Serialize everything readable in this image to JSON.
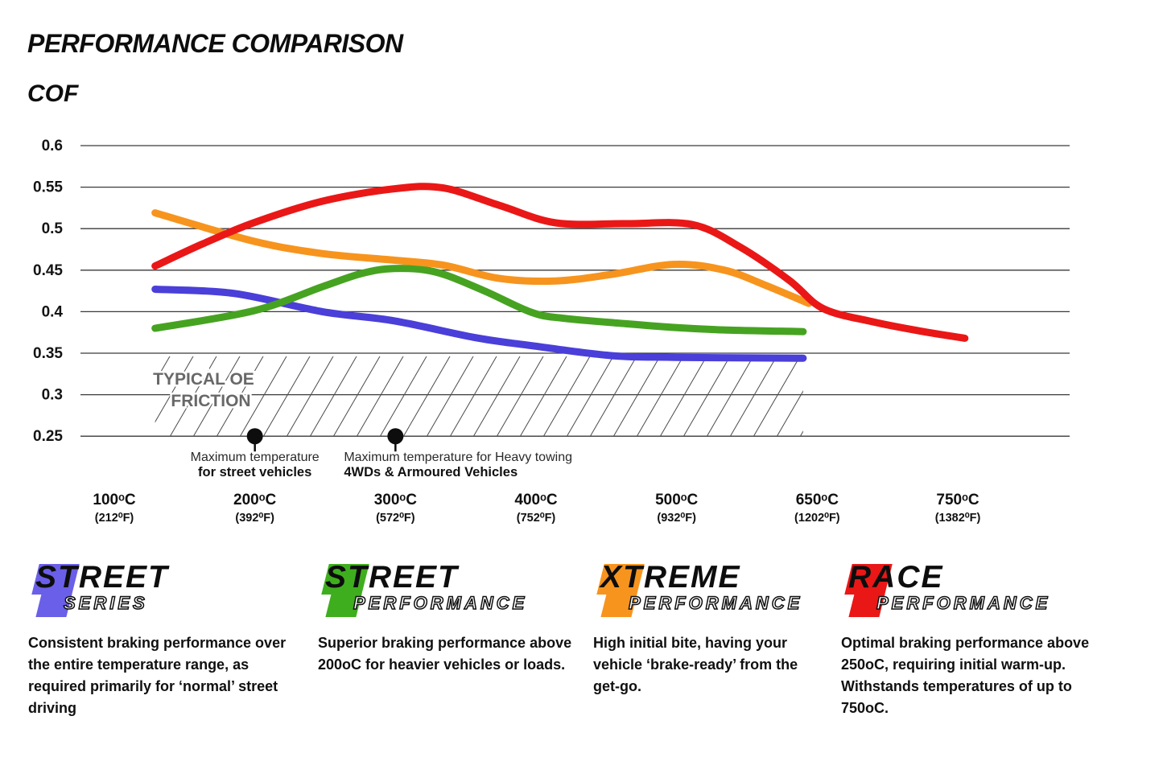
{
  "header": {
    "title": "PERFORMANCE COMPARISON",
    "y_axis_title": "COF"
  },
  "chart_data": {
    "type": "line",
    "title": "PERFORMANCE COMPARISON",
    "ylabel": "COF",
    "ylim": [
      0.25,
      0.6
    ],
    "grid": "horizontal",
    "legend_position": "none",
    "yticks": [
      "0.6",
      "0.55",
      "0.5",
      "0.45",
      "0.4",
      "0.35",
      "0.3",
      "0.25"
    ],
    "xticks": [
      {
        "c": "100ᵒC",
        "f": "(212⁰F)"
      },
      {
        "c": "200ᵒC",
        "f": "(392⁰F)"
      },
      {
        "c": "300ᵒC",
        "f": "(572⁰F)"
      },
      {
        "c": "400ᵒC",
        "f": "(752⁰F)"
      },
      {
        "c": "500ᵒC",
        "f": "(932⁰F)"
      },
      {
        "c": "650ᵒC",
        "f": "(1202⁰F)"
      },
      {
        "c": "750ᵒC",
        "f": "(1382⁰F)"
      }
    ],
    "x_units": "tick-index (0=100C, 1=200C, 2=300C, 3=400C, 4=500C, 5=650C, 6=750C)",
    "series": [
      {
        "name": "STREET SERIES",
        "color": "#4a3fd9",
        "cof_at_ticks": [
          0.427,
          0.42,
          0.39,
          0.358,
          0.346,
          0.344,
          null
        ],
        "points": [
          [
            0.29,
            0.427
          ],
          [
            0.85,
            0.422
          ],
          [
            1.48,
            0.4
          ],
          [
            1.99,
            0.389
          ],
          [
            2.56,
            0.369
          ],
          [
            2.97,
            0.359
          ],
          [
            3.54,
            0.347
          ],
          [
            4.0,
            0.345
          ],
          [
            4.9,
            0.344
          ]
        ]
      },
      {
        "name": "STREET PERFORMANCE",
        "color": "#46a321",
        "cof_at_ticks": [
          0.38,
          0.401,
          0.452,
          0.398,
          0.381,
          0.376,
          null
        ],
        "points": [
          [
            0.29,
            0.38
          ],
          [
            0.99,
            0.401
          ],
          [
            1.48,
            0.43
          ],
          [
            1.76,
            0.446
          ],
          [
            1.99,
            0.452
          ],
          [
            2.28,
            0.448
          ],
          [
            2.62,
            0.426
          ],
          [
            2.97,
            0.399
          ],
          [
            3.2,
            0.392
          ],
          [
            3.6,
            0.386
          ],
          [
            3.98,
            0.381
          ],
          [
            4.34,
            0.378
          ],
          [
            4.9,
            0.376
          ]
        ]
      },
      {
        "name": "XTREME PERFORMANCE",
        "color": "#f7941e",
        "cof_at_ticks": [
          0.519,
          0.485,
          0.462,
          0.439,
          0.457,
          0.41,
          null
        ],
        "points": [
          [
            0.29,
            0.519
          ],
          [
            0.99,
            0.485
          ],
          [
            1.48,
            0.47
          ],
          [
            1.99,
            0.462
          ],
          [
            2.34,
            0.456
          ],
          [
            2.74,
            0.44
          ],
          [
            3.14,
            0.437
          ],
          [
            3.54,
            0.445
          ],
          [
            3.98,
            0.457
          ],
          [
            4.34,
            0.45
          ],
          [
            4.63,
            0.432
          ],
          [
            4.94,
            0.41
          ]
        ]
      },
      {
        "name": "RACE PERFORMANCE",
        "color": "#ea1717",
        "cof_at_ticks": [
          0.455,
          0.507,
          0.548,
          0.507,
          0.505,
          0.404,
          0.368
        ],
        "points": [
          [
            0.29,
            0.455
          ],
          [
            0.62,
            0.481
          ],
          [
            0.99,
            0.507
          ],
          [
            1.48,
            0.533
          ],
          [
            1.99,
            0.548
          ],
          [
            2.34,
            0.549
          ],
          [
            2.74,
            0.528
          ],
          [
            3.14,
            0.507
          ],
          [
            3.63,
            0.506
          ],
          [
            4.11,
            0.505
          ],
          [
            4.45,
            0.478
          ],
          [
            4.8,
            0.438
          ],
          [
            5.04,
            0.404
          ],
          [
            5.39,
            0.388
          ],
          [
            5.72,
            0.377
          ],
          [
            6.05,
            0.368
          ]
        ]
      }
    ],
    "oe_band": {
      "label_line1": "TYPICAL OE",
      "label_line2": "FRICTION",
      "cof_range": [
        0.25,
        0.35
      ],
      "tick_range": [
        0.29,
        4.9
      ]
    },
    "markers": [
      {
        "at_tick": 1,
        "align": "center",
        "line1": "Maximum temperature",
        "line2": "for street vehicles"
      },
      {
        "at_tick": 2,
        "align": "left",
        "line1": "Maximum temperature for Heavy towing",
        "line2": "4WDs & Armoured Vehicles"
      }
    ]
  },
  "products": [
    {
      "line1": "STREET",
      "line2": "SERIES",
      "color": "#6a5fe8",
      "desc": "Consistent braking performance over the entire temperature range, as required primarily for ‘normal’ street driving"
    },
    {
      "line1": "STREET",
      "line2": "PERFORMANCE",
      "color": "#3fae1e",
      "desc": "Superior braking performance above 200oC for heavier vehicles or loads."
    },
    {
      "line1": "XTREME",
      "line2": "PERFORMANCE",
      "color": "#f7941e",
      "desc": "High initial bite, having your vehicle ‘brake-ready’ from the get-go."
    },
    {
      "line1": "RACE",
      "line2": "PERFORMANCE",
      "color": "#ea1717",
      "desc": "Optimal braking performance above 250oC, requiring initial warm-up. Withstands temperatures of up to 750oC."
    }
  ]
}
